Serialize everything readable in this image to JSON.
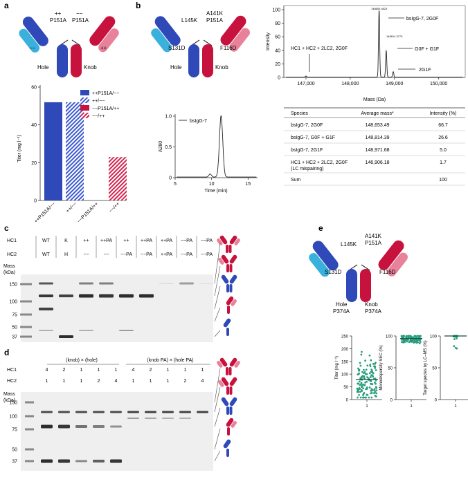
{
  "panels": {
    "a": "a",
    "b": "b",
    "c": "c",
    "d": "d",
    "e": "e"
  },
  "colors": {
    "blue_dark": "#2f49b8",
    "blue_light": "#3ab0dc",
    "red_dark": "#c8123e",
    "pink": "#e8829a",
    "green": "#2a9d7c"
  },
  "panel_a": {
    "diagram": {
      "left_top": "++",
      "left_mut": "P151A",
      "left_bottom": "−−",
      "right_top": "−−",
      "right_mut": "P151A",
      "right_bottom": "++",
      "hole": "Hole",
      "knob": "Knob"
    },
    "chart_data": {
      "type": "bar",
      "categories": [
        "++P151A/−−",
        "++/−−",
        "−−P151A/++",
        "−−/++"
      ],
      "values": [
        52,
        52,
        0,
        23
      ],
      "ylabel": "Titer (mg l⁻¹)",
      "ylim": [
        0,
        60
      ],
      "yticks": [
        0,
        20,
        40,
        60
      ],
      "legend": [
        "++P151A/−−",
        "++/−−",
        "−−P151A/++",
        "−−/++"
      ],
      "legend_position": "top-right"
    }
  },
  "panel_b": {
    "diagram": {
      "l145k": "L145K",
      "a141k": "A141K",
      "p151a": "P151A",
      "s131d": "S131D",
      "f116d": "F116D",
      "hole": "Hole",
      "knob": "Knob"
    },
    "ms": {
      "ylabel": "Intensity",
      "xlabel": "Mass (Da)",
      "xticks": [
        "147,000",
        "148,000",
        "149,000",
        "150,000"
      ],
      "yticks": [
        "0",
        "20",
        "40",
        "60",
        "80",
        "100"
      ],
      "ann_main": "bsIgG-7, 2G0F",
      "ann_g0f": "G0F + G1F",
      "ann_2g1f": "2G1F",
      "ann_hc": "HC1 + HC2 + 2LC2, 2G0F",
      "peak1": "148653.4623",
      "peak2": "148814.3770",
      "peak_xs": [
        147000,
        148653,
        148814,
        148972
      ],
      "peak_ys": [
        1.5,
        100,
        40,
        8
      ]
    },
    "sec": {
      "legend": "bsIgG-7",
      "ylabel": "A280",
      "xlabel": "Time (min)",
      "xticks": [
        "5",
        "10",
        "15"
      ],
      "yticks": [
        "0",
        "0.5",
        "1.0"
      ],
      "peak_time": 11.3,
      "peak_height": 1.0,
      "shoulder_time": 9.8,
      "shoulder_height": 0.05
    },
    "table": {
      "headers": [
        "Species",
        "Average mass*",
        "Intensity (%)"
      ],
      "rows": [
        [
          "bsIgG-7, 2G0F",
          "148,653.49",
          "66.7"
        ],
        [
          "bsIgG-7, G0F + G1F",
          "148,814.39",
          "26.6"
        ],
        [
          "bsIgG-7, 2G1F",
          "148,971.68",
          "5.0"
        ],
        [
          "HC1 + HC2 + 2LC2, 2G0F\n(LC mispairing)",
          "146,906.18",
          "1.7"
        ],
        [
          "Sum",
          "",
          "100"
        ]
      ]
    }
  },
  "panel_c": {
    "hc1_label": "HC1",
    "hc2_label": "HC2",
    "mass_label": "Mass\n(kDa)",
    "hc1": [
      "WT",
      "K",
      "++",
      "++PA",
      "++",
      "++PA",
      "++PA",
      "−−PA",
      "−−PA"
    ],
    "hc2": [
      "WT",
      "H",
      "−−",
      "−−",
      "−−PA",
      "−−PA",
      "++PA",
      "−−PA",
      "−−PA"
    ],
    "markers": [
      "150",
      "100",
      "75",
      "50",
      "37"
    ]
  },
  "panel_d": {
    "hc1_label": "HC1",
    "hc2_label": "HC2",
    "mass_label": "Mass\n(kDa)",
    "group1": "(knob) × (hole)",
    "group2": "(knob PA) × (hole PA)",
    "hc1": [
      "4",
      "2",
      "1",
      "1",
      "1",
      "4",
      "2",
      "1",
      "1",
      "1"
    ],
    "hc2": [
      "1",
      "1",
      "1",
      "2",
      "4",
      "1",
      "1",
      "1",
      "2",
      "4"
    ],
    "markers": [
      "150",
      "100",
      "75",
      "50",
      "37"
    ]
  },
  "panel_e": {
    "diagram": {
      "l145k": "L145K",
      "a141k": "A141K",
      "p151a": "P151A",
      "s131d": "S131D",
      "f116d": "F116D",
      "hole": "Hole",
      "knob": "Knob",
      "p374a_l": "P374A",
      "p374a_r": "P374A"
    },
    "chart_data": [
      {
        "type": "scatter",
        "ylabel": "Titer (mg l⁻¹)",
        "yticks": [
          0,
          50,
          100,
          150,
          200,
          250
        ],
        "ylim": [
          0,
          250
        ],
        "median": 80,
        "x_tick": "1"
      },
      {
        "type": "scatter",
        "ylabel": "Monodispersity SEC (%)",
        "yticks": [
          0,
          50,
          100
        ],
        "ylim": [
          0,
          100
        ],
        "median": 96,
        "x_tick": "1"
      },
      {
        "type": "scatter",
        "ylabel": "Target species by LC–MS (%)",
        "yticks": [
          0,
          50,
          100
        ],
        "ylim": [
          0,
          100
        ],
        "median": 100,
        "x_tick": "1"
      }
    ]
  }
}
